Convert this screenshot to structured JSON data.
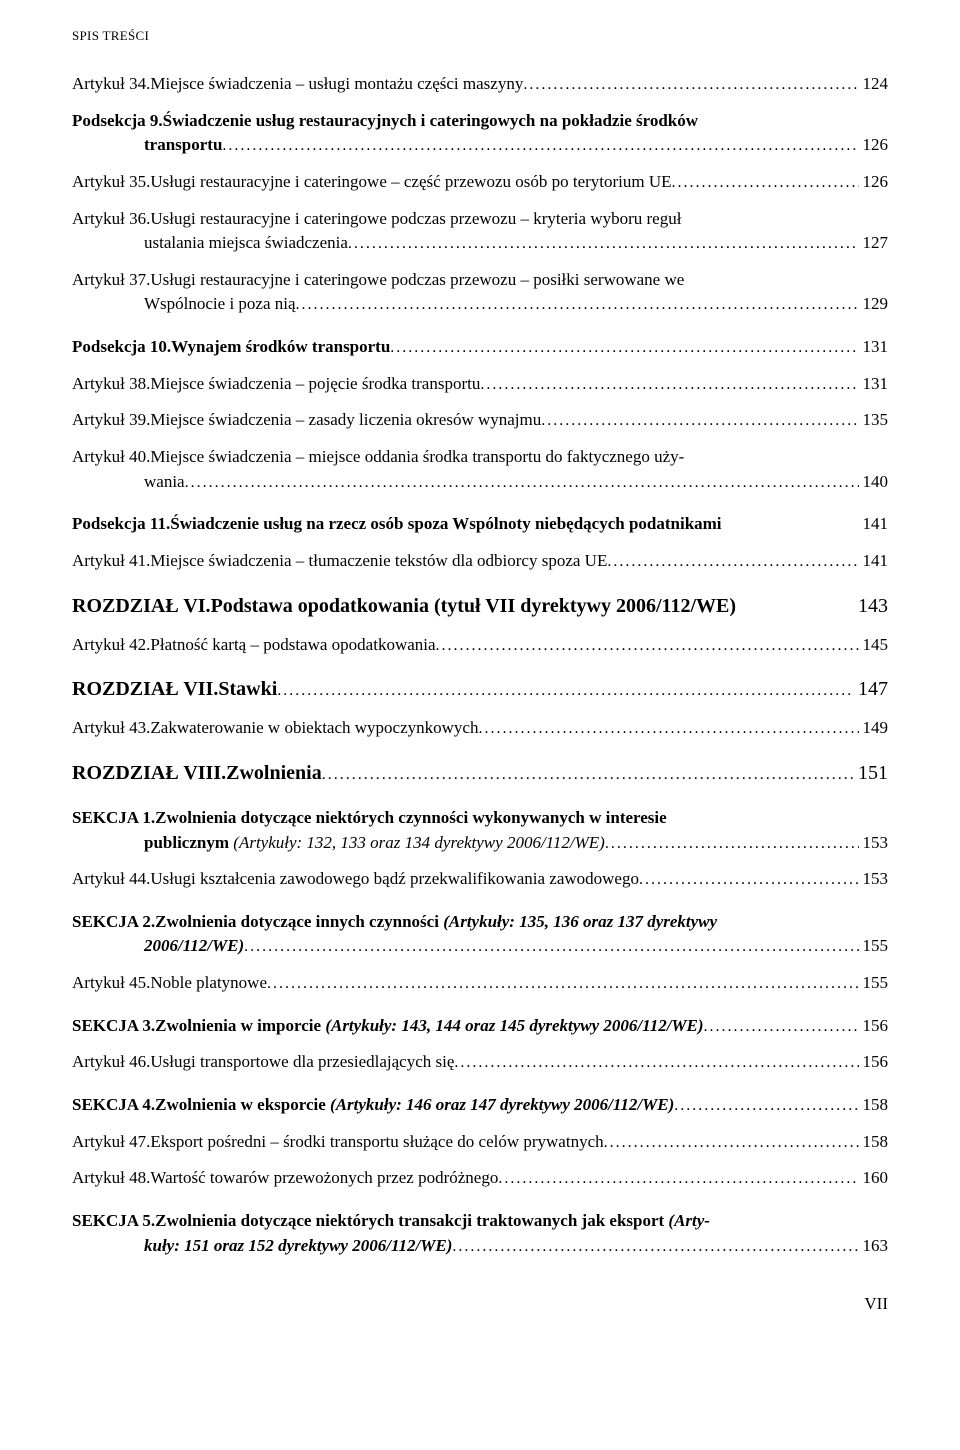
{
  "runningHeader": "SPIS TREŚCI",
  "leaderDots": "..................................................................................................................................................................",
  "entries": [
    {
      "label": "Artykuł 34. ",
      "text": "Miejsce świadczenia – usługi montażu części maszyny",
      "page": "124",
      "bold": false,
      "size": "fs-normal",
      "spaced": false
    },
    {
      "label": "Podsekcja 9. ",
      "text": "Świadczenie usług restauracyjnych i cateringowych na pokładzie środków",
      "cont": "transportu",
      "page": "126",
      "bold": true,
      "size": "fs-normal",
      "spaced": false
    },
    {
      "label": "Artykuł 35. ",
      "text": "Usługi restauracyjne i cateringowe – część przewozu osób po terytorium UE",
      "page": "126",
      "bold": false,
      "size": "fs-normal",
      "spaced": false
    },
    {
      "label": "Artykuł 36. ",
      "text": "Usługi restauracyjne i cateringowe podczas przewozu – kryteria wyboru reguł",
      "cont": "ustalania miejsca świadczenia",
      "page": "127",
      "bold": false,
      "size": "fs-normal",
      "spaced": false
    },
    {
      "label": "Artykuł 37. ",
      "text": "Usługi restauracyjne i cateringowe podczas przewozu – posiłki serwowane we",
      "cont": "Wspólnocie i poza nią",
      "page": "129",
      "bold": false,
      "size": "fs-normal",
      "spaced": true
    },
    {
      "label": "Podsekcja 10. ",
      "text": "Wynajem środków transportu",
      "page": "131",
      "bold": true,
      "size": "fs-normal",
      "spaced": false
    },
    {
      "label": "Artykuł 38. ",
      "text": "Miejsce świadczenia – pojęcie środka transportu",
      "page": "131",
      "bold": false,
      "size": "fs-normal",
      "spaced": false
    },
    {
      "label": "Artykuł 39. ",
      "text": "Miejsce świadczenia – zasady liczenia okresów wynajmu",
      "page": "135",
      "bold": false,
      "size": "fs-normal",
      "spaced": false
    },
    {
      "label": "Artykuł 40. ",
      "text": "Miejsce świadczenia – miejsce oddania środka transportu do faktycznego uży-",
      "cont": "wania",
      "page": "140",
      "bold": false,
      "size": "fs-normal",
      "spaced": true
    },
    {
      "label": "Podsekcja 11. ",
      "text": "Świadczenie usług na rzecz osób spoza Wspólnoty niebędących podatnikami",
      "page": "141",
      "bold": true,
      "size": "fs-normal",
      "spaced": false,
      "noLeader": true
    },
    {
      "label": "Artykuł 41. ",
      "text": "Miejsce świadczenia – tłumaczenie tekstów dla odbiorcy spoza UE",
      "page": "141",
      "bold": false,
      "size": "fs-normal",
      "spaced": true
    },
    {
      "label": "ROZDZIAŁ VI. ",
      "text": "Podstawa opodatkowania (tytuł VII dyrektywy 2006/112/WE)",
      "page": "143",
      "bold": true,
      "size": "fs-chapter",
      "spaced": false,
      "noLeader": true
    },
    {
      "label": "Artykuł 42. ",
      "text": "Płatność kartą – podstawa opodatkowania",
      "page": "145",
      "bold": false,
      "size": "fs-normal",
      "spaced": true
    },
    {
      "label": "ROZDZIAŁ VII. ",
      "text": "Stawki",
      "page": "147",
      "bold": true,
      "size": "fs-chapter",
      "spaced": false
    },
    {
      "label": "Artykuł 43. ",
      "text": "Zakwaterowanie w obiektach wypoczynkowych",
      "page": "149",
      "bold": false,
      "size": "fs-normal",
      "spaced": true
    },
    {
      "label": "ROZDZIAŁ VIII. ",
      "text": "Zwolnienia",
      "page": "151",
      "bold": true,
      "size": "fs-chapter",
      "spaced": true
    },
    {
      "label": "SEKCJA 1. ",
      "text": "Zwolnienia dotyczące niektórych czynności wykonywanych w interesie",
      "cont_html": "<span class=\"bold\">publicznym </span><span class=\"italic\">(Artykuły: 132, 133 oraz 134 dyrektywy 2006/112/WE)</span>",
      "page": "153",
      "bold": true,
      "size": "fs-normal",
      "spaced": false
    },
    {
      "label": "Artykuł 44. ",
      "text": "Usługi kształcenia zawodowego bądź przekwalifikowania zawodowego",
      "page": "153",
      "bold": false,
      "size": "fs-normal",
      "spaced": true
    },
    {
      "label": "SEKCJA 2. ",
      "text_html": "<span class=\"bold\">Zwolnienia dotyczące innych czynności </span><span class=\"italic bold\">(Artykuły: 135, 136 oraz 137 dyrektywy</span>",
      "cont_html": "<span class=\"italic bold\">2006/112/WE)</span>",
      "page": "155",
      "bold": true,
      "size": "fs-normal",
      "spaced": false
    },
    {
      "label": "Artykuł 45. ",
      "text": "Noble platynowe",
      "page": "155",
      "bold": false,
      "size": "fs-normal",
      "spaced": true
    },
    {
      "label": "SEKCJA 3. ",
      "text_html": "<span class=\"bold\">Zwolnienia w imporcie </span><span class=\"italic bold\">(Artykuły: 143, 144 oraz 145 dyrektywy 2006/112/WE)</span>",
      "page": "156",
      "bold": true,
      "size": "fs-normal",
      "spaced": false
    },
    {
      "label": "Artykuł 46. ",
      "text": "Usługi transportowe dla przesiedlających się",
      "page": "156",
      "bold": false,
      "size": "fs-normal",
      "spaced": true
    },
    {
      "label": "SEKCJA 4. ",
      "text_html": "<span class=\"bold\">Zwolnienia w eksporcie </span><span class=\"italic bold\">(Artykuły: 146 oraz 147 dyrektywy 2006/112/WE)</span>",
      "page": "158",
      "bold": true,
      "size": "fs-normal",
      "spaced": false
    },
    {
      "label": "Artykuł 47. ",
      "text": "Eksport pośredni – środki transportu służące do celów prywatnych",
      "page": "158",
      "bold": false,
      "size": "fs-normal",
      "spaced": false
    },
    {
      "label": "Artykuł 48. ",
      "text": "Wartość towarów przewożonych przez podróżnego",
      "page": "160",
      "bold": false,
      "size": "fs-normal",
      "spaced": true
    },
    {
      "label": "SEKCJA 5. ",
      "text_html": "<span class=\"bold\">Zwolnienia dotyczące niektórych transakcji traktowanych jak eksport </span><span class=\"italic bold\">(Arty-</span>",
      "cont_html": "<span class=\"italic bold\">kuły: 151 oraz 152 dyrektywy 2006/112/WE)</span>",
      "page": "163",
      "bold": true,
      "size": "fs-normal",
      "spaced": false
    }
  ],
  "footerPage": "VII"
}
